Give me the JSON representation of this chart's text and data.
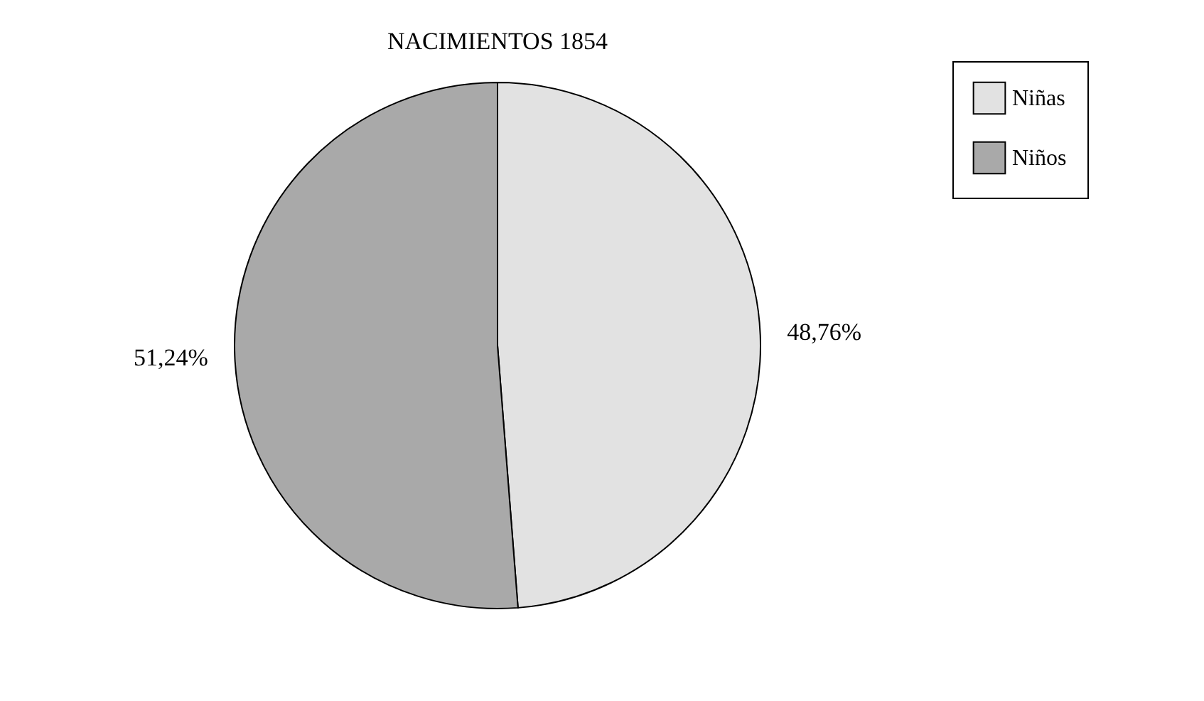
{
  "chart_data": {
    "type": "pie",
    "title": "NACIMIENTOS 1854",
    "categories": [
      "Niñas",
      "Niños"
    ],
    "values": [
      48.76,
      51.24
    ],
    "colors": [
      "#e2e2e2",
      "#a9a9a9"
    ],
    "value_labels": [
      "48,76%",
      "51,24%"
    ],
    "legend": "right"
  }
}
